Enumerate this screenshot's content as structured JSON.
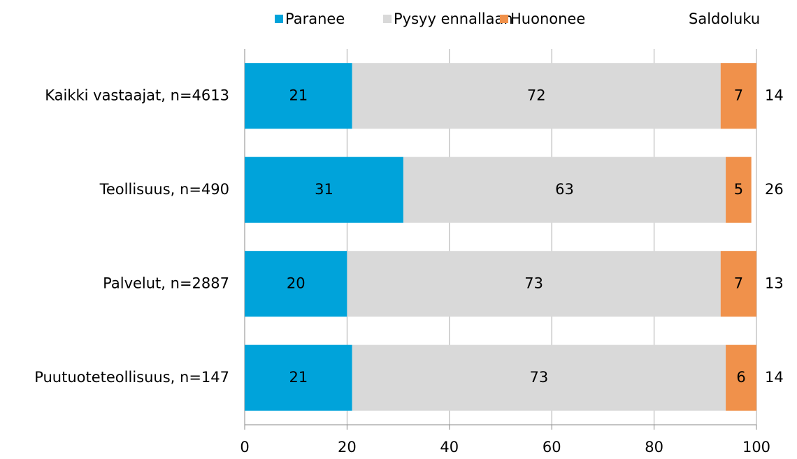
{
  "chart_data": {
    "type": "stacked-bar-horizontal",
    "categories": [
      "Kaikki vastaajat, n=4613",
      "Teollisuus, n=490",
      "Palvelut, n=2887",
      "Puutuoteteollisuus, n=147"
    ],
    "series": [
      {
        "name": "Paranee",
        "color": "#00a3da",
        "values": [
          21,
          31,
          20,
          21
        ]
      },
      {
        "name": "Pysyy ennallaan",
        "color": "#d9d9d9",
        "values": [
          72,
          63,
          73,
          73
        ]
      },
      {
        "name": "Huononee",
        "color": "#f0914b",
        "values": [
          7,
          5,
          7,
          6
        ]
      }
    ],
    "balance": {
      "name": "Saldoluku",
      "values": [
        14,
        26,
        13,
        14
      ]
    },
    "xlim": [
      0,
      100
    ],
    "xticks": [
      0,
      20,
      40,
      60,
      80,
      100
    ],
    "grid": true,
    "legend": "top"
  }
}
